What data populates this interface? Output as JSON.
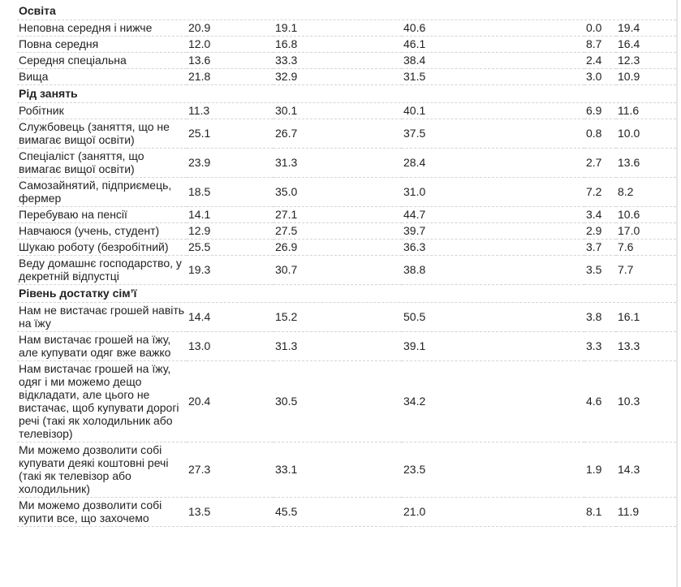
{
  "sections": [
    {
      "title": "Освіта",
      "rows": [
        {
          "label": "Неповна середня і нижче",
          "values": [
            "20.9",
            "19.1",
            "40.6",
            "0.0",
            "19.4"
          ]
        },
        {
          "label": "Повна середня",
          "values": [
            "12.0",
            "16.8",
            "46.1",
            "8.7",
            "16.4"
          ]
        },
        {
          "label": "Середня спеціальна",
          "values": [
            "13.6",
            "33.3",
            "38.4",
            "2.4",
            "12.3"
          ]
        },
        {
          "label": "Вища",
          "values": [
            "21.8",
            "32.9",
            "31.5",
            "3.0",
            "10.9"
          ]
        }
      ]
    },
    {
      "title": "Рід занять",
      "rows": [
        {
          "label": "Робітник",
          "values": [
            "11.3",
            "30.1",
            "40.1",
            "6.9",
            "11.6"
          ]
        },
        {
          "label": "Службовець (заняття, що не вимагає вищої освіти)",
          "values": [
            "25.1",
            "26.7",
            "37.5",
            "0.8",
            "10.0"
          ]
        },
        {
          "label": "Спеціаліст (заняття, що вимагає вищої освіти)",
          "values": [
            "23.9",
            "31.3",
            "28.4",
            "2.7",
            "13.6"
          ]
        },
        {
          "label": "Самозайнятий, підприємець, фермер",
          "values": [
            "18.5",
            "35.0",
            "31.0",
            "7.2",
            "8.2"
          ]
        },
        {
          "label": "Перебуваю на пенсії",
          "values": [
            "14.1",
            "27.1",
            "44.7",
            "3.4",
            "10.6"
          ]
        },
        {
          "label": "Навчаюся (учень, студент)",
          "values": [
            "12.9",
            "27.5",
            "39.7",
            "2.9",
            "17.0"
          ]
        },
        {
          "label": "Шукаю роботу (безробітний)",
          "values": [
            "25.5",
            "26.9",
            "36.3",
            "3.7",
            "7.6"
          ]
        },
        {
          "label": "Веду домашнє господарство, у декретній відпустці",
          "values": [
            "19.3",
            "30.7",
            "38.8",
            "3.5",
            "7.7"
          ]
        }
      ]
    },
    {
      "title": "Рівень достатку сім’ї",
      "rows": [
        {
          "label": "Нам не вистачає грошей навіть на їжу",
          "values": [
            "14.4",
            "15.2",
            "50.5",
            "3.8",
            "16.1"
          ]
        },
        {
          "label": "Нам вистачає грошей на їжу, але купувати одяг вже важко",
          "values": [
            "13.0",
            "31.3",
            "39.1",
            "3.3",
            "13.3"
          ]
        },
        {
          "label": "Нам вистачає грошей на їжу, одяг і ми можемо дещо відкладати, але цього не вистачає, щоб купувати дорогі речі (такі як холодильник або телевізор)",
          "values": [
            "20.4",
            "30.5",
            "34.2",
            "4.6",
            "10.3"
          ]
        },
        {
          "label": "Ми можемо дозволити собі купувати деякі коштовні речі (такі як телевізор або холодильник)",
          "values": [
            "27.3",
            "33.1",
            "23.5",
            "1.9",
            "14.3"
          ]
        },
        {
          "label": "Ми можемо дозволити собі купити все, що захочемо",
          "values": [
            "13.5",
            "45.5",
            "21.0",
            "8.1",
            "11.9"
          ]
        }
      ]
    }
  ]
}
